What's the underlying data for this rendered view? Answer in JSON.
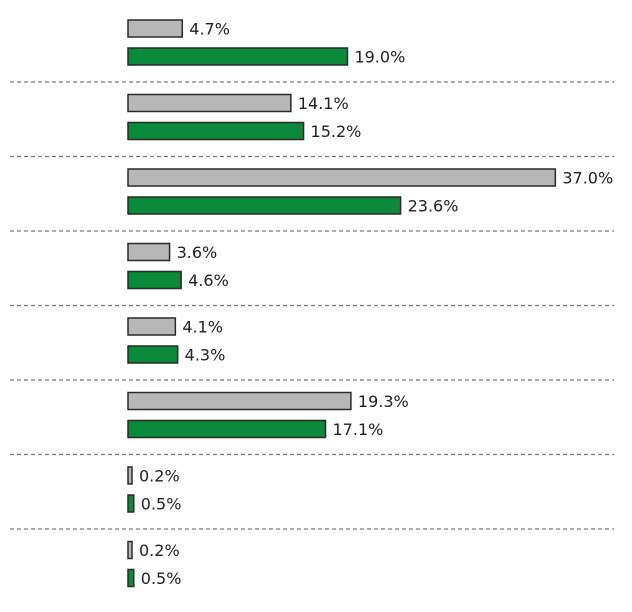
{
  "chart_data": {
    "type": "bar",
    "orientation": "horizontal",
    "title": "",
    "xlabel": "",
    "ylabel": "",
    "xlim": [
      0,
      37.0
    ],
    "grid": false,
    "category_separators": "dashed",
    "value_format": "{v}%",
    "colors": {
      "series_1": "#b7b7b7",
      "series_2": "#0a8a3a"
    },
    "series": [
      {
        "values": [
          4.7,
          14.1,
          37.0,
          3.6,
          4.1,
          19.3,
          0.2,
          0.2
        ]
      },
      {
        "values": [
          19.0,
          15.2,
          23.6,
          4.6,
          4.3,
          17.1,
          0.5,
          0.5
        ]
      }
    ],
    "labels": [
      [
        "4.7%",
        "19.0%"
      ],
      [
        "14.1%",
        "15.2%"
      ],
      [
        "37.0%",
        "23.6%"
      ],
      [
        "3.6%",
        "4.6%"
      ],
      [
        "4.1%",
        "4.3%"
      ],
      [
        "19.3%",
        "17.1%"
      ],
      [
        "0.2%",
        "0.5%"
      ],
      [
        "0.2%",
        "0.5%"
      ]
    ]
  }
}
